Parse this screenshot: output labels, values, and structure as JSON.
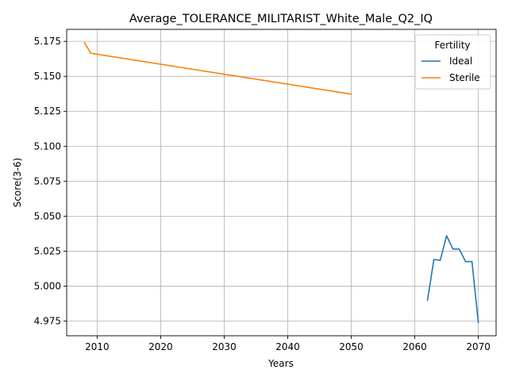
{
  "chart_data": {
    "type": "line",
    "title": "Average_TOLERANCE_MILITARIST_White_Male_Q2_IQ",
    "xlabel": "Years",
    "ylabel": "Score(3-6)",
    "xlim": [
      2005.2,
      2072.8
    ],
    "ylim": [
      4.9645,
      5.1836
    ],
    "x_ticks": [
      2010,
      2020,
      2030,
      2040,
      2050,
      2060,
      2070
    ],
    "x_tick_labels": [
      "2010",
      "2020",
      "2030",
      "2040",
      "2050",
      "2060",
      "2070"
    ],
    "y_ticks": [
      4.975,
      5.0,
      5.025,
      5.05,
      5.075,
      5.1,
      5.125,
      5.15,
      5.175
    ],
    "y_tick_labels": [
      "4.975",
      "5.000",
      "5.025",
      "5.050",
      "5.075",
      "5.100",
      "5.125",
      "5.150",
      "5.175"
    ],
    "grid": true,
    "legend": {
      "title": "Fertility",
      "placement": "top-right"
    },
    "series": [
      {
        "name": "Ideal",
        "color": "#1f77b4",
        "x": [
          2062,
          2063,
          2064,
          2065,
          2066,
          2067,
          2068,
          2069,
          2070
        ],
        "y": [
          4.99,
          5.019,
          5.0185,
          5.036,
          5.0265,
          5.0265,
          5.0175,
          5.0175,
          4.974
        ]
      },
      {
        "name": "Sterile",
        "color": "#ff7f0e",
        "x": [
          2008,
          2009,
          2050
        ],
        "y": [
          5.174,
          5.1665,
          5.1373
        ]
      }
    ]
  }
}
